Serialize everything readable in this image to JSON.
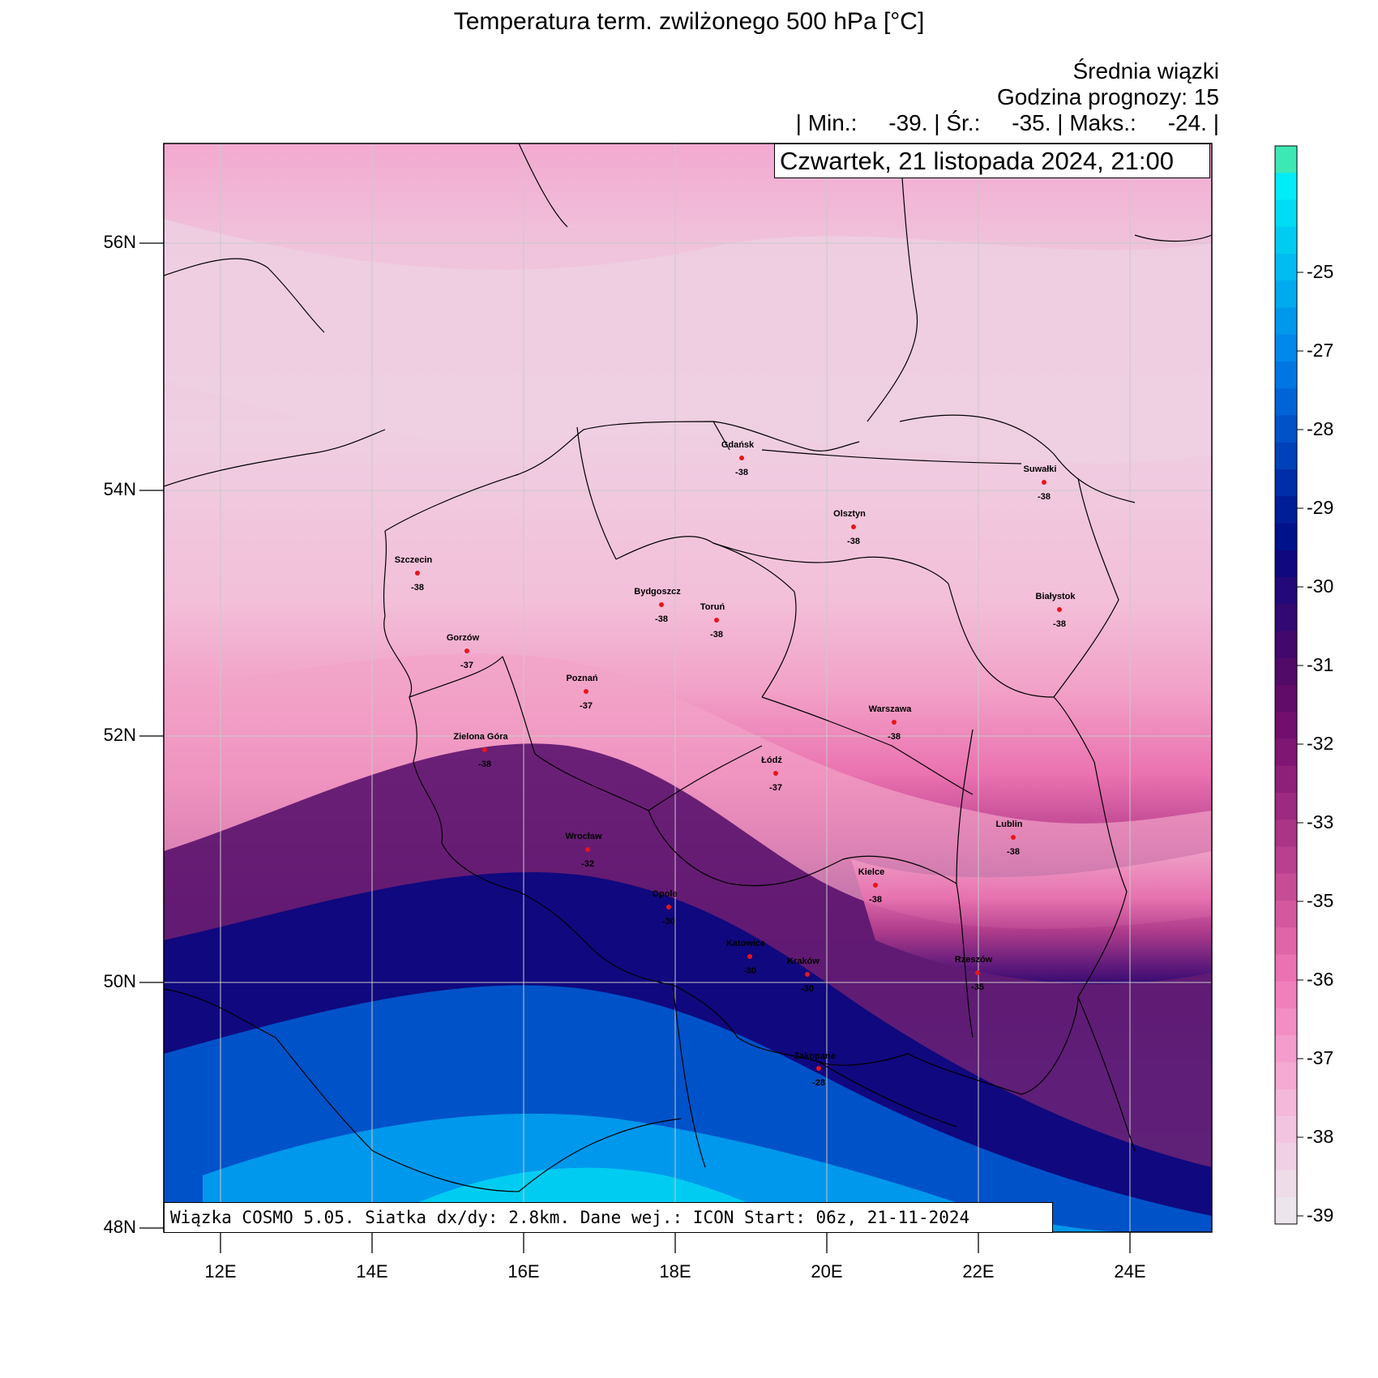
{
  "title": "Temperatura term. zwilżonego 500 hPa [°C]",
  "subtitle1": "Średnia wiązki",
  "subtitle2": "Godzina prognozy: 15",
  "stats": "| Min.:     -39. | Śr.:     -35. | Maks.:     -24. |",
  "datetime": "Czwartek, 21 listopada 2024, 21:00",
  "footer": "Wiązka COSMO 5.05. Siatka dx/dy: 2.8km. Dane wej.: ICON Start: 06z, 21-11-2024",
  "axes": {
    "lat_labels": [
      "56N",
      "54N",
      "52N",
      "50N",
      "48N"
    ],
    "lon_labels": [
      "12E",
      "14E",
      "16E",
      "18E",
      "20E",
      "22E",
      "24E"
    ]
  },
  "colorbar": {
    "labels": [
      "-25",
      "-27",
      "-28",
      "-29",
      "-30",
      "-31",
      "-32",
      "-33",
      "-35",
      "-36",
      "-37",
      "-38",
      "-39"
    ],
    "colors": [
      "#3ee8b4",
      "#00ecf6",
      "#00dcf4",
      "#00ccf2",
      "#00bcf0",
      "#00aaee",
      "#0098ec",
      "#0088ea",
      "#0076e2",
      "#0064d6",
      "#0052c8",
      "#0040b8",
      "#002ea8",
      "#001e96",
      "#00128a",
      "#10087e",
      "#220878",
      "#320872",
      "#42086c",
      "#520a68",
      "#620c6a",
      "#720e6e",
      "#801674",
      "#8e207a",
      "#9c2a80",
      "#aa3486",
      "#b8408e",
      "#c64c96",
      "#d4589e",
      "#e064a8",
      "#ea72b2",
      "#f080bc",
      "#f28ec4",
      "#f49ccc",
      "#f4aad2",
      "#f4b8da",
      "#f2c4e0",
      "#f0d0e4",
      "#eedce8",
      "#ece6ec"
    ]
  },
  "cities": [
    {
      "name": "Gdańsk",
      "value": "-38"
    },
    {
      "name": "Suwałki",
      "value": "-38"
    },
    {
      "name": "Olsztyn",
      "value": "-38"
    },
    {
      "name": "Szczecin",
      "value": "-38"
    },
    {
      "name": "Bydgoszcz",
      "value": "-38"
    },
    {
      "name": "Toruń",
      "value": "-38"
    },
    {
      "name": "Białystok",
      "value": "-38"
    },
    {
      "name": "Gorzów",
      "value": "-37"
    },
    {
      "name": "Poznań",
      "value": "-37"
    },
    {
      "name": "Warszawa",
      "value": "-38"
    },
    {
      "name": "Zielona Góra",
      "value": "-38"
    },
    {
      "name": "Łódź",
      "value": "-37"
    },
    {
      "name": "Lublin",
      "value": "-38"
    },
    {
      "name": "Wrocław",
      "value": "-32"
    },
    {
      "name": "Kielce",
      "value": "-38"
    },
    {
      "name": "Opole",
      "value": "-30"
    },
    {
      "name": "Katowice",
      "value": "-30"
    },
    {
      "name": "Kraków",
      "value": "-30"
    },
    {
      "name": "Rzeszów",
      "value": "-35"
    },
    {
      "name": "Zakopane",
      "value": "-28"
    }
  ]
}
